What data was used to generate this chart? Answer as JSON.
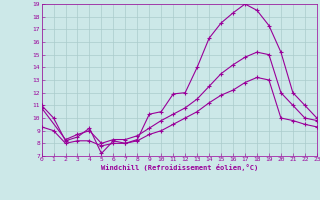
{
  "bg_color": "#cce8e8",
  "grid_color": "#aacccc",
  "line_color": "#990099",
  "xlabel": "Windchill (Refroidissement éolien,°C)",
  "xlim": [
    0,
    23
  ],
  "ylim": [
    7,
    19
  ],
  "xticks": [
    0,
    1,
    2,
    3,
    4,
    5,
    6,
    7,
    8,
    9,
    10,
    11,
    12,
    13,
    14,
    15,
    16,
    17,
    18,
    19,
    20,
    21,
    22,
    23
  ],
  "yticks": [
    7,
    8,
    9,
    10,
    11,
    12,
    13,
    14,
    15,
    16,
    17,
    18,
    19
  ],
  "s1_x": [
    0,
    1,
    2,
    3,
    4,
    5,
    6,
    7,
    8,
    9,
    10,
    11,
    12,
    13,
    14,
    15,
    16,
    17,
    18,
    19,
    20,
    21,
    22,
    23
  ],
  "s1_y": [
    11,
    10,
    8.2,
    8.5,
    9.2,
    7.2,
    8.2,
    8.0,
    8.3,
    10.3,
    10.5,
    11.9,
    12.0,
    14.0,
    16.3,
    17.5,
    18.3,
    19.0,
    18.5,
    17.3,
    15.2,
    12.0,
    11.0,
    10.0
  ],
  "s2_x": [
    0,
    2,
    3,
    4,
    5,
    6,
    7,
    8,
    9,
    10,
    11,
    12,
    13,
    14,
    15,
    16,
    17,
    18,
    19,
    20,
    21,
    22,
    23
  ],
  "s2_y": [
    10.8,
    8.3,
    8.7,
    9.0,
    8.0,
    8.3,
    8.3,
    8.6,
    9.2,
    9.8,
    10.3,
    10.8,
    11.5,
    12.5,
    13.5,
    14.2,
    14.8,
    15.2,
    15.0,
    12.0,
    11.0,
    10.0,
    9.8
  ],
  "s3_x": [
    0,
    1,
    2,
    3,
    4,
    5,
    6,
    7,
    8,
    9,
    10,
    11,
    12,
    13,
    14,
    15,
    16,
    17,
    18,
    19,
    20,
    21,
    22,
    23
  ],
  "s3_y": [
    9.3,
    9.0,
    8.0,
    8.2,
    8.2,
    7.8,
    8.0,
    8.0,
    8.2,
    8.7,
    9.0,
    9.5,
    10.0,
    10.5,
    11.2,
    11.8,
    12.2,
    12.8,
    13.2,
    13.0,
    10.0,
    9.8,
    9.5,
    9.3
  ]
}
